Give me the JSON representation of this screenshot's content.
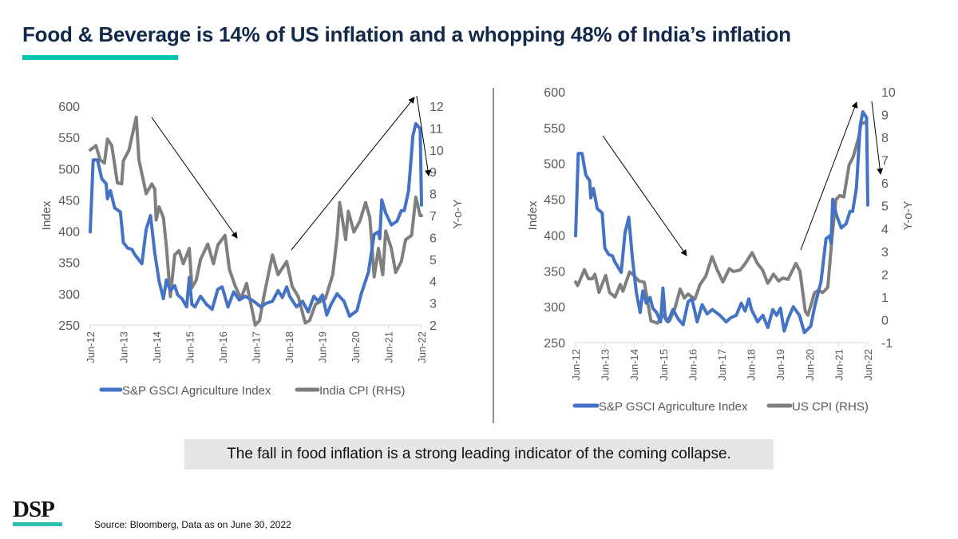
{
  "title": "Food & Beverage is 14% of US inflation and a whopping 48% of India’s inflation",
  "callout": "The fall in food inflation is a strong leading indicator of the coming collapse.",
  "logo": "DSP",
  "source": "Source:  Bloomberg,  Data as on June 30, 2022",
  "colors": {
    "agri": "#4472c4",
    "cpi": "#7f7f7f",
    "accent": "#00c4b0",
    "title": "#12294a"
  },
  "chart_data": [
    {
      "type": "line",
      "title": "",
      "ylabel": "Index",
      "y2label": "Y-o-Y",
      "ylim": [
        250,
        600
      ],
      "yticks": [
        250,
        300,
        350,
        400,
        450,
        500,
        550,
        600
      ],
      "y2lim": [
        2,
        12
      ],
      "y2ticks": [
        2,
        3,
        4,
        5,
        6,
        7,
        8,
        9,
        10,
        11,
        12
      ],
      "xlim": [
        2012.5,
        2022.5
      ],
      "xticks": [
        "Jun-12",
        "Jun-13",
        "Jun-14",
        "Jun-15",
        "Jun-16",
        "Jun-17",
        "Jun-18",
        "Jun-19",
        "Jun-20",
        "Jun-21",
        "Jun-22"
      ],
      "legend": "bottom",
      "series": [
        {
          "name": "S&P GSCI Agriculture Index",
          "axis": "left",
          "color": "#4472c4",
          "x": [
            2012.5,
            2012.59,
            2012.72,
            2012.85,
            2012.98,
            2013.02,
            2013.11,
            2013.24,
            2013.41,
            2013.5,
            2013.63,
            2013.76,
            2013.84,
            2014.06,
            2014.19,
            2014.32,
            2014.45,
            2014.58,
            2014.71,
            2014.8,
            2014.92,
            2015.05,
            2015.14,
            2015.27,
            2015.41,
            2015.49,
            2015.57,
            2015.66,
            2015.83,
            2016.01,
            2016.18,
            2016.35,
            2016.48,
            2016.66,
            2016.83,
            2017.0,
            2017.18,
            2017.44,
            2017.65,
            2017.82,
            2018.0,
            2018.17,
            2018.3,
            2018.43,
            2018.52,
            2018.73,
            2018.91,
            2019.08,
            2019.25,
            2019.38,
            2019.51,
            2019.64,
            2019.77,
            2019.95,
            2020.16,
            2020.33,
            2020.55,
            2020.68,
            2020.9,
            2021.07,
            2021.2,
            2021.24,
            2021.3,
            2021.42,
            2021.59,
            2021.76,
            2021.89,
            2021.98,
            2022.11,
            2022.24,
            2022.33,
            2022.46,
            2022.5
          ],
          "y": [
            399,
            514,
            514,
            484,
            476,
            452,
            465,
            437,
            431,
            382,
            373,
            371,
            363,
            348,
            403,
            425,
            365,
            320,
            292,
            322,
            305,
            313,
            298,
            292,
            279,
            326,
            283,
            279,
            296,
            283,
            275,
            307,
            311,
            279,
            303,
            290,
            296,
            288,
            279,
            285,
            288,
            305,
            294,
            311,
            296,
            279,
            288,
            271,
            296,
            288,
            298,
            266,
            283,
            300,
            288,
            264,
            273,
            300,
            335,
            395,
            399,
            388,
            450,
            429,
            410,
            416,
            433,
            433,
            465,
            553,
            572,
            564,
            442
          ]
        },
        {
          "name": "India CPI (RHS)",
          "axis": "right",
          "color": "#7f7f7f",
          "x": [
            2012.5,
            2012.67,
            2012.8,
            2012.93,
            2013.02,
            2013.15,
            2013.32,
            2013.45,
            2013.5,
            2013.67,
            2013.89,
            2013.97,
            2014.19,
            2014.36,
            2014.45,
            2014.49,
            2014.58,
            2014.71,
            2014.8,
            2014.92,
            2015.05,
            2015.18,
            2015.31,
            2015.49,
            2015.57,
            2015.7,
            2015.83,
            2016.05,
            2016.22,
            2016.35,
            2016.57,
            2016.7,
            2016.87,
            2017.05,
            2017.22,
            2017.35,
            2017.48,
            2017.61,
            2017.74,
            2017.91,
            2018.0,
            2018.17,
            2018.43,
            2018.6,
            2018.78,
            2018.99,
            2019.12,
            2019.3,
            2019.6,
            2019.82,
            2019.95,
            2020.03,
            2020.21,
            2020.29,
            2020.46,
            2020.64,
            2020.81,
            2020.94,
            2021.07,
            2021.2,
            2021.33,
            2021.42,
            2021.59,
            2021.72,
            2021.89,
            2022.02,
            2022.2,
            2022.33,
            2022.46,
            2022.5
          ],
          "y": [
            10.0,
            10.2,
            9.55,
            9.4,
            10.5,
            10.2,
            8.5,
            8.45,
            9.5,
            10.0,
            11.5,
            9.55,
            8.0,
            8.45,
            8.2,
            6.8,
            7.4,
            6.9,
            5.6,
            3.3,
            5.2,
            5.4,
            4.8,
            5.5,
            3.7,
            4.05,
            5.0,
            5.7,
            4.8,
            5.65,
            6.1,
            4.55,
            3.8,
            3.2,
            3.9,
            2.95,
            2.0,
            2.2,
            3.3,
            4.55,
            5.2,
            4.3,
            4.9,
            3.75,
            3.3,
            2.1,
            2.2,
            2.95,
            3.2,
            4.3,
            6.0,
            7.6,
            5.9,
            7.2,
            6.25,
            6.75,
            7.6,
            6.9,
            4.2,
            5.5,
            4.3,
            6.3,
            5.5,
            4.4,
            4.9,
            5.9,
            6.1,
            7.85,
            7.0,
            7.0
          ]
        }
      ]
    },
    {
      "type": "line",
      "title": "",
      "ylabel": "Index",
      "y2label": "Y-o-Y",
      "ylim": [
        250,
        600
      ],
      "yticks": [
        250,
        300,
        350,
        400,
        450,
        500,
        550,
        600
      ],
      "y2lim": [
        -1,
        10
      ],
      "y2ticks": [
        -1,
        0,
        1,
        2,
        3,
        4,
        5,
        6,
        7,
        8,
        9,
        10
      ],
      "xlim": [
        2012.5,
        2022.5
      ],
      "xticks": [
        "Jun-12",
        "Jun-13",
        "Jun-14",
        "Jun-15",
        "Jun-16",
        "Jun-17",
        "Jun-18",
        "Jun-19",
        "Jun-20",
        "Jun-21",
        "Jun-22"
      ],
      "legend": "bottom",
      "series": [
        {
          "name": "S&P GSCI Agriculture Index",
          "axis": "left",
          "color": "#4472c4",
          "x": [
            2012.5,
            2012.59,
            2012.72,
            2012.85,
            2012.98,
            2013.02,
            2013.11,
            2013.24,
            2013.41,
            2013.5,
            2013.63,
            2013.76,
            2013.84,
            2014.06,
            2014.19,
            2014.32,
            2014.45,
            2014.58,
            2014.71,
            2014.8,
            2014.92,
            2015.05,
            2015.14,
            2015.27,
            2015.41,
            2015.49,
            2015.57,
            2015.66,
            2015.83,
            2016.01,
            2016.18,
            2016.35,
            2016.48,
            2016.66,
            2016.83,
            2017.0,
            2017.18,
            2017.44,
            2017.65,
            2017.82,
            2018.0,
            2018.17,
            2018.3,
            2018.43,
            2018.52,
            2018.73,
            2018.91,
            2019.08,
            2019.25,
            2019.38,
            2019.51,
            2019.64,
            2019.77,
            2019.95,
            2020.16,
            2020.33,
            2020.55,
            2020.68,
            2020.9,
            2021.07,
            2021.2,
            2021.24,
            2021.3,
            2021.42,
            2021.59,
            2021.76,
            2021.89,
            2021.98,
            2022.11,
            2022.24,
            2022.33,
            2022.46,
            2022.5
          ],
          "y": [
            399,
            514,
            514,
            484,
            476,
            452,
            465,
            437,
            431,
            382,
            373,
            371,
            363,
            348,
            403,
            425,
            365,
            320,
            292,
            322,
            305,
            313,
            298,
            292,
            279,
            326,
            283,
            279,
            296,
            283,
            275,
            307,
            311,
            279,
            303,
            290,
            296,
            288,
            279,
            285,
            288,
            305,
            294,
            311,
            296,
            279,
            288,
            271,
            296,
            288,
            298,
            266,
            283,
            300,
            288,
            264,
            273,
            300,
            335,
            395,
            399,
            388,
            450,
            429,
            410,
            416,
            433,
            433,
            465,
            553,
            572,
            564,
            442
          ]
        },
        {
          "name": "US CPI (RHS)",
          "axis": "right",
          "color": "#7f7f7f",
          "x": [
            2012.5,
            2012.57,
            2012.8,
            2012.94,
            2013.07,
            2013.16,
            2013.3,
            2013.53,
            2013.66,
            2013.85,
            2014.03,
            2014.12,
            2014.35,
            2014.49,
            2014.67,
            2014.85,
            2015.08,
            2015.3,
            2015.49,
            2015.71,
            2015.9,
            2016.08,
            2016.22,
            2016.35,
            2016.58,
            2016.76,
            2016.95,
            2017.17,
            2017.35,
            2017.54,
            2017.76,
            2017.9,
            2018.13,
            2018.31,
            2018.54,
            2018.72,
            2018.9,
            2019.08,
            2019.27,
            2019.45,
            2019.59,
            2019.77,
            2020.04,
            2020.18,
            2020.36,
            2020.45,
            2020.68,
            2020.82,
            2020.95,
            2021.13,
            2021.27,
            2021.41,
            2021.54,
            2021.68,
            2021.86,
            2022.0,
            2022.18,
            2022.27,
            2022.41,
            2022.45
          ],
          "y": [
            1.66,
            1.5,
            2.2,
            1.8,
            1.8,
            2.0,
            1.2,
            1.95,
            1.2,
            1.0,
            1.55,
            1.25,
            2.1,
            1.95,
            1.7,
            1.65,
            -0.05,
            -0.15,
            0.2,
            -0.05,
            0.5,
            1.35,
            0.95,
            1.13,
            0.9,
            1.55,
            1.9,
            2.77,
            2.18,
            1.66,
            2.24,
            2.12,
            2.18,
            2.47,
            2.94,
            2.47,
            2.18,
            1.6,
            2.0,
            1.7,
            1.83,
            1.77,
            2.47,
            2.12,
            0.37,
            0.2,
            1.19,
            1.3,
            1.19,
            1.42,
            3.52,
            5.27,
            5.45,
            5.39,
            6.79,
            7.14,
            7.96,
            8.6,
            8.66,
            8.6
          ]
        }
      ]
    }
  ]
}
